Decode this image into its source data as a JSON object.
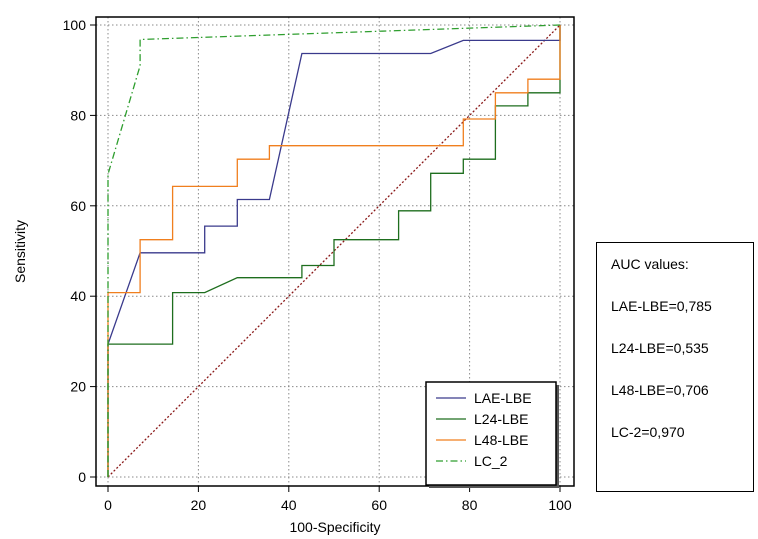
{
  "chart_data": {
    "type": "line",
    "title": "",
    "xlabel": "100-Specificity",
    "ylabel": "Sensitivity",
    "xlim": [
      0,
      100
    ],
    "ylim": [
      0,
      100
    ],
    "xticks": [
      0,
      20,
      40,
      60,
      80,
      100
    ],
    "yticks": [
      0,
      20,
      40,
      60,
      80,
      100
    ],
    "grid": true,
    "legend_position": "bottom-right",
    "series": [
      {
        "name": "LAE-LBE",
        "color": "#3a3a8c",
        "style": "solid",
        "x": [
          0,
          0,
          7.1,
          7.1,
          21.4,
          21.4,
          28.6,
          28.6,
          35.7,
          42.9,
          42.9,
          71.4,
          78.6,
          78.6,
          100,
          100
        ],
        "y": [
          0,
          29.4,
          49.6,
          49.6,
          49.6,
          55.5,
          55.5,
          61.4,
          61.4,
          93.7,
          93.7,
          93.7,
          96.6,
          96.6,
          96.6,
          100
        ]
      },
      {
        "name": "L24-LBE",
        "color": "#1e6e1e",
        "style": "solid",
        "x": [
          0,
          0,
          14.3,
          14.3,
          21.4,
          28.6,
          42.9,
          42.9,
          50,
          50,
          64.3,
          64.3,
          71.4,
          71.4,
          78.6,
          78.6,
          85.7,
          85.7,
          92.9,
          92.9,
          100,
          100
        ],
        "y": [
          0,
          29.4,
          29.4,
          40.8,
          40.8,
          44.1,
          44.1,
          46.8,
          46.8,
          52.5,
          52.5,
          58.9,
          58.9,
          67.2,
          67.2,
          70.3,
          70.3,
          82.1,
          82.1,
          85,
          85,
          100
        ]
      },
      {
        "name": "L48-LBE",
        "color": "#f07f1e",
        "style": "solid",
        "x": [
          0,
          0,
          7.1,
          7.1,
          14.3,
          14.3,
          28.6,
          28.6,
          35.7,
          35.7,
          78.6,
          78.6,
          85.7,
          85.7,
          92.9,
          92.9,
          100,
          100
        ],
        "y": [
          0,
          40.8,
          40.8,
          52.5,
          52.5,
          64.3,
          64.3,
          70.3,
          70.3,
          73.3,
          73.3,
          79.2,
          79.2,
          85,
          85,
          88,
          88,
          100
        ]
      },
      {
        "name": "LC_2",
        "color": "#2e9e2e",
        "style": "dashdot",
        "x": [
          0,
          0,
          0,
          7.1,
          7.1,
          100
        ],
        "y": [
          0,
          62,
          67,
          91,
          96.8,
          100
        ]
      },
      {
        "name": "",
        "color": "#8b1a1a",
        "style": "dotted",
        "x": [
          0,
          100
        ],
        "y": [
          0,
          100
        ]
      }
    ]
  },
  "auc_box": {
    "lines": [
      "AUC values:",
      "LAE-LBE=0,785",
      "L24-LBE=0,535",
      "L48-LBE=0,706",
      "LC-2=0,970"
    ]
  }
}
